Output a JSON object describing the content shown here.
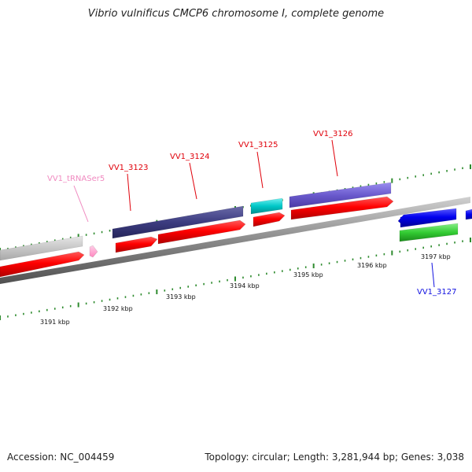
{
  "title": "Vibrio vulnificus CMCP6 chromosome I, complete genome",
  "accession": "Accession: NC_004459",
  "topology": "Topology: circular; Length: 3,281,944 bp; Genes: 3,038",
  "gene_labels": [
    {
      "id": "trna",
      "text": "VV1_tRNASer5",
      "color": "#f08ac0"
    },
    {
      "id": "g3123",
      "text": "VV1_3123",
      "color": "#e0000a"
    },
    {
      "id": "g3124",
      "text": "VV1_3124",
      "color": "#e0000a"
    },
    {
      "id": "g3125",
      "text": "VV1_3125",
      "color": "#e0000a"
    },
    {
      "id": "g3126",
      "text": "VV1_3126",
      "color": "#e0000a"
    },
    {
      "id": "g3127",
      "text": "VV1_3127",
      "color": "#1010e0"
    }
  ],
  "kbp_labels": [
    "3191 kbp",
    "3192 kbp",
    "3193 kbp",
    "3194 kbp",
    "3195 kbp",
    "3196 kbp",
    "3197 kbp"
  ],
  "colors": {
    "backbone": "#808080",
    "cds_red": "#ff0000",
    "grey_feature": "#c8c8c8",
    "dark_purple": "#3c3c80",
    "cyan": "#00c8c8",
    "medium_purple": "#6a5acd",
    "blue": "#0000ee",
    "green": "#33cc33",
    "pink": "#ff99cc",
    "ticks": "#2e8b2e"
  }
}
